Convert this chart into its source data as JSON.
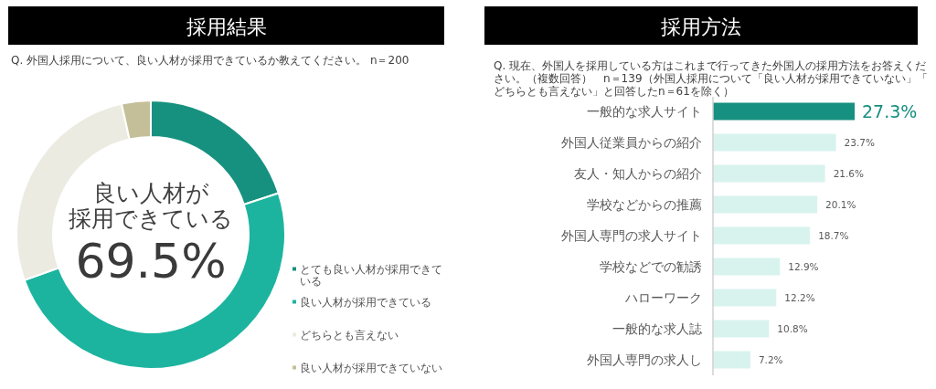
{
  "chart_data": [
    {
      "type": "donut",
      "title": "採用結果",
      "subtitle": "Q. 外国人採用について、良い人材が採用できているか教えてください。 n＝200",
      "categories": [
        "とても良い人材が採用できている",
        "良い人材が採用できている",
        "どちらとも言えない",
        "良い人材が採用できていない"
      ],
      "values": [
        20.0,
        49.5,
        27.0,
        3.5
      ],
      "colors": [
        "#17917f",
        "#1cb49f",
        "#ecebe1",
        "#c5bf99"
      ],
      "legend": "right",
      "annotations": [
        "良い人材が",
        "採用できている",
        "69.5%"
      ]
    },
    {
      "type": "bar",
      "orientation": "horizontal",
      "title": "採用方法",
      "subtitle": "Q. 現在、外国人を採用している方はこれまで行ってきた外国人の採用方法をお答えください。（複数回答）　n＝139（外国人採用について「良い人材が採用できていない」「どちらとも言えない」と回答したn＝61を除く）",
      "categories": [
        "一般的な求人サイト",
        "外国人従業員からの紹介",
        "友人・知人からの紹介",
        "学校などからの推薦",
        "外国人専門の求人サイト",
        "学校などでの勧誘",
        "ハローワーク",
        "一般的な求人誌",
        "外国人専門の求人し"
      ],
      "values": [
        27.3,
        23.7,
        21.6,
        20.1,
        18.7,
        12.9,
        12.2,
        10.8,
        7.2
      ],
      "colors": [
        "#169080",
        "#d8f3ee",
        "#d8f3ee",
        "#d8f3ee",
        "#d8f3ee",
        "#d8f3ee",
        "#d8f3ee",
        "#d8f3ee",
        "#d8f3ee"
      ],
      "value_labels": [
        "27.3%",
        "23.7%",
        "21.6%",
        "20.1%",
        "18.7%",
        "12.9%",
        "12.2%",
        "10.8%",
        "7.2%"
      ]
    }
  ]
}
